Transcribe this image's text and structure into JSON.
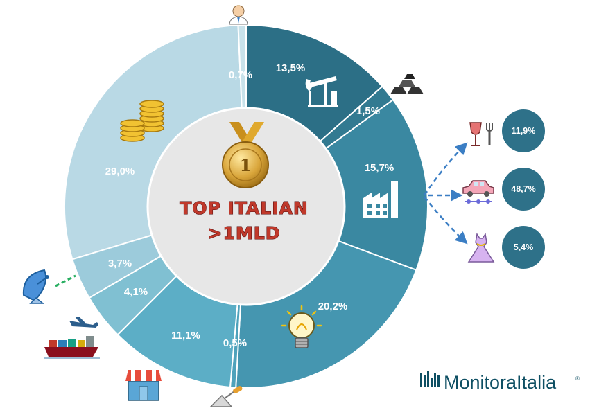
{
  "chart_data": {
    "type": "pie",
    "donut": true,
    "center_label": [
      "TOP ITALIAN",
      ">1MLD"
    ],
    "slices": [
      {
        "label": "13,5%",
        "value": 13.5,
        "icon": "oil-pump-icon",
        "color": "#2c6f86"
      },
      {
        "label": "1,5%",
        "value": 1.5,
        "icon": "metal-ingots-icon",
        "color": "#327a91"
      },
      {
        "label": "15,7%",
        "value": 15.7,
        "icon": "factory-icon",
        "color": "#3a88a1"
      },
      {
        "label": "20,2%",
        "value": 20.2,
        "icon": "light-bulb-icon",
        "color": "#4596b0"
      },
      {
        "label": "0,5%",
        "value": 0.5,
        "icon": "trowel-icon",
        "color": "#4fa2bb"
      },
      {
        "label": "11,1%",
        "value": 11.1,
        "icon": "shop-icon",
        "color": "#5caec6"
      },
      {
        "label": "4,1%",
        "value": 4.1,
        "icon": "ship-plane-truck-icon",
        "color": "#80c0d2"
      },
      {
        "label": "3,7%",
        "value": 3.7,
        "icon": "satellite-dish-icon",
        "color": "#9ccbdb"
      },
      {
        "label": "29,0%",
        "value": 29.0,
        "icon": "gold-coins-icon",
        "color": "#b9d9e5"
      },
      {
        "label": "0,7%",
        "value": 0.7,
        "icon": "person-icon",
        "color": "#c9e2ea"
      }
    ],
    "breakdown_of": "15,7%",
    "breakdown": [
      {
        "label": "11,9%",
        "value": 11.9,
        "icon": "wine-glass-fork-icon"
      },
      {
        "label": "48,7%",
        "value": 48.7,
        "icon": "car-icon"
      },
      {
        "label": "5,4%",
        "value": 5.4,
        "icon": "dress-icon"
      }
    ]
  },
  "medal_icon": "gold-medal-icon",
  "medal_number": "1",
  "brand": {
    "name": "MonitoraItalia",
    "registered": "®"
  }
}
